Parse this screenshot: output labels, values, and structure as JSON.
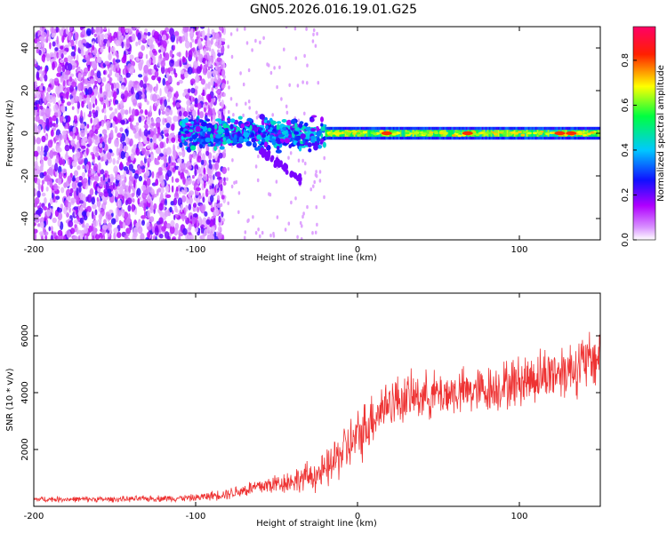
{
  "figure": {
    "title": "GN05.2026.016.19.01.G25"
  },
  "chart_data": [
    {
      "type": "heatmap",
      "name": "spectrogram",
      "title": "GN05.2026.016.19.01.G25",
      "xlabel": "Height of straight line (km)",
      "ylabel": "Frequency (Hz)",
      "xlim": [
        -200,
        150
      ],
      "ylim": [
        -50,
        50
      ],
      "x_ticks": [
        -200,
        -100,
        0,
        100
      ],
      "y_ticks": [
        -40,
        -20,
        0,
        20,
        40
      ],
      "features": [
        {
          "region": "noise",
          "x_range": [
            -200,
            -90
          ],
          "y_range": [
            -50,
            50
          ],
          "amplitude": 0.2
        },
        {
          "region": "onset",
          "x_range": [
            -110,
            -20
          ],
          "y_center": 0,
          "y_half_width": 12,
          "amplitude": 0.45
        },
        {
          "region": "signal",
          "x_range": [
            -20,
            150
          ],
          "y_center": 0,
          "y_half_width": 3,
          "amplitude": 0.75
        }
      ],
      "peaks_x": [
        18,
        68,
        125,
        132
      ]
    },
    {
      "type": "colorbar",
      "name": "amplitude-colorbar",
      "label": "Normalized spectral amplitude",
      "range": [
        0,
        0.95
      ],
      "ticks": [
        "0.0",
        "0.2",
        "0.4",
        "0.6",
        "0.8"
      ],
      "colors": [
        "#ffffff",
        "#b000ff",
        "#0000ff",
        "#00c0ff",
        "#00ff60",
        "#ffff00",
        "#ff0000",
        "#ff0066"
      ]
    },
    {
      "type": "line",
      "name": "snr",
      "xlabel": "Height of straight line (km)",
      "ylabel": "SNR (10 * v/v)",
      "xlim": [
        -200,
        150
      ],
      "ylim": [
        0,
        7500
      ],
      "x_ticks": [
        -200,
        -100,
        0,
        100
      ],
      "y_ticks": [
        2000,
        4000,
        6000
      ],
      "color": "#ee3333",
      "envelope": {
        "x": [
          -200,
          -150,
          -100,
          -80,
          -60,
          -40,
          -20,
          -10,
          0,
          10,
          20,
          40,
          60,
          80,
          100,
          120,
          140,
          150
        ],
        "mean": [
          250,
          250,
          300,
          450,
          700,
          900,
          1200,
          1900,
          2400,
          3200,
          3700,
          3900,
          4000,
          4100,
          4400,
          4700,
          5000,
          5300
        ],
        "spread": [
          120,
          120,
          150,
          250,
          400,
          500,
          800,
          1100,
          1200,
          1200,
          1100,
          1000,
          1000,
          1000,
          1100,
          1200,
          1300,
          1300
        ]
      }
    }
  ]
}
